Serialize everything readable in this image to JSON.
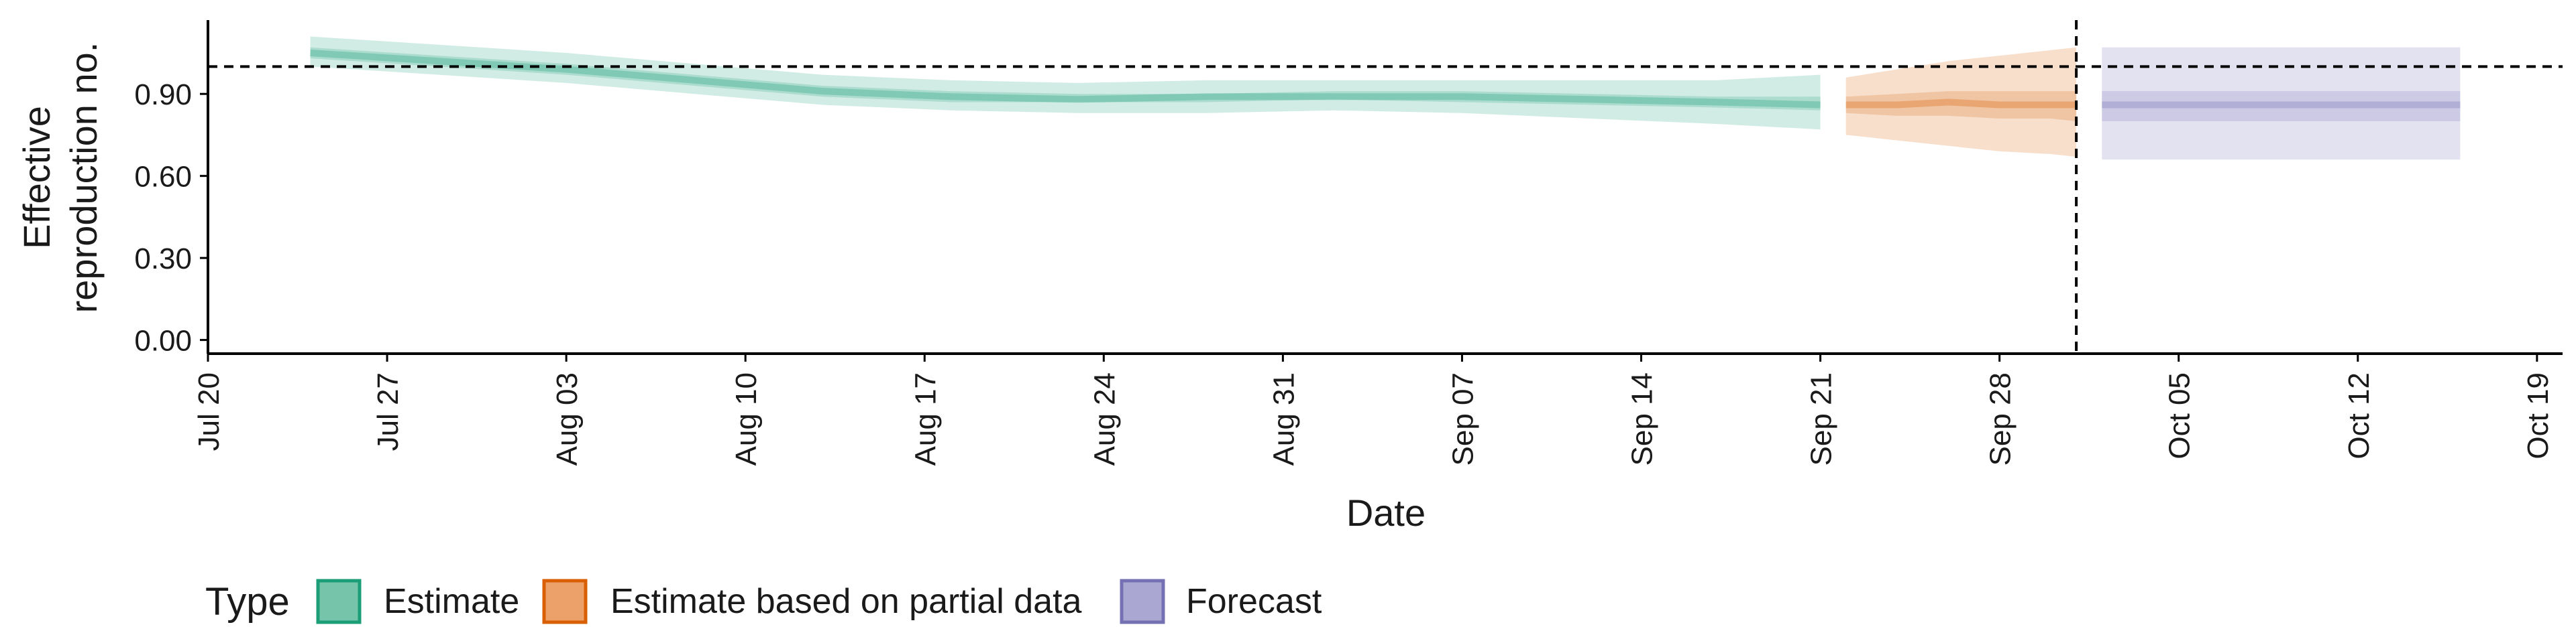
{
  "chart_data": {
    "type": "area",
    "xlabel": "Date",
    "ylabel_lines": [
      "Effective",
      "reproduction no."
    ],
    "x_ticks": [
      "Jul 20",
      "Jul 27",
      "Aug 03",
      "Aug 10",
      "Aug 17",
      "Aug 24",
      "Aug 31",
      "Sep 07",
      "Sep 14",
      "Sep 21",
      "Sep 28",
      "Oct 05",
      "Oct 12",
      "Oct 19"
    ],
    "x_tick_dates": [
      "2020-07-20",
      "2020-07-27",
      "2020-08-03",
      "2020-08-10",
      "2020-08-17",
      "2020-08-24",
      "2020-08-31",
      "2020-09-07",
      "2020-09-14",
      "2020-09-21",
      "2020-09-28",
      "2020-10-05",
      "2020-10-12",
      "2020-10-19"
    ],
    "xlim": [
      "2020-07-20",
      "2020-10-20"
    ],
    "y_ticks": [
      "0.00",
      "0.30",
      "0.60",
      "0.90"
    ],
    "ylim": [
      -0.05,
      1.17
    ],
    "reference_line_y": 1.0,
    "reference_line_x": "2020-10-01",
    "legend": {
      "title": "Type",
      "position": "bottom",
      "items": [
        {
          "label": "Estimate",
          "fill": "#76c4aa",
          "stroke": "#1b9e77"
        },
        {
          "label": "Estimate based on partial data",
          "fill": "#eca06a",
          "stroke": "#d95f02"
        },
        {
          "label": "Forecast",
          "fill": "#aaa7d2",
          "stroke": "#7570b3"
        }
      ]
    },
    "series": [
      {
        "name": "Estimate",
        "color": "#1b9e77",
        "x": [
          "2020-07-24",
          "2020-07-29",
          "2020-08-03",
          "2020-08-08",
          "2020-08-13",
          "2020-08-18",
          "2020-08-23",
          "2020-08-28",
          "2020-09-02",
          "2020-09-07",
          "2020-09-12",
          "2020-09-17",
          "2020-09-21"
        ],
        "median": [
          1.05,
          1.02,
          0.99,
          0.95,
          0.91,
          0.89,
          0.88,
          0.89,
          0.89,
          0.89,
          0.88,
          0.87,
          0.86
        ],
        "lower_50": [
          1.03,
          1.0,
          0.97,
          0.93,
          0.89,
          0.87,
          0.87,
          0.87,
          0.88,
          0.87,
          0.86,
          0.85,
          0.84
        ],
        "upper_50": [
          1.07,
          1.04,
          1.01,
          0.97,
          0.93,
          0.91,
          0.9,
          0.9,
          0.91,
          0.91,
          0.9,
          0.89,
          0.89
        ],
        "lower_90": [
          1.0,
          0.97,
          0.94,
          0.9,
          0.86,
          0.84,
          0.83,
          0.83,
          0.84,
          0.83,
          0.81,
          0.79,
          0.77
        ],
        "upper_90": [
          1.11,
          1.08,
          1.05,
          1.01,
          0.97,
          0.95,
          0.94,
          0.95,
          0.95,
          0.95,
          0.95,
          0.95,
          0.97
        ]
      },
      {
        "name": "Estimate based on partial data",
        "color": "#d95f02",
        "x": [
          "2020-09-22",
          "2020-09-24",
          "2020-09-26",
          "2020-09-28",
          "2020-09-30",
          "2020-10-01"
        ],
        "median": [
          0.86,
          0.86,
          0.87,
          0.86,
          0.86,
          0.86
        ],
        "lower_50": [
          0.83,
          0.82,
          0.82,
          0.81,
          0.81,
          0.8
        ],
        "upper_50": [
          0.89,
          0.9,
          0.91,
          0.91,
          0.91,
          0.91
        ],
        "lower_90": [
          0.75,
          0.73,
          0.71,
          0.69,
          0.68,
          0.67
        ],
        "upper_90": [
          0.96,
          0.99,
          1.02,
          1.04,
          1.06,
          1.07
        ]
      },
      {
        "name": "Forecast",
        "color": "#7570b3",
        "x": [
          "2020-10-02",
          "2020-10-16"
        ],
        "median": [
          0.86,
          0.86
        ],
        "lower_50": [
          0.8,
          0.8
        ],
        "upper_50": [
          0.91,
          0.91
        ],
        "lower_90": [
          0.66,
          0.66
        ],
        "upper_90": [
          1.07,
          1.07
        ]
      }
    ]
  }
}
